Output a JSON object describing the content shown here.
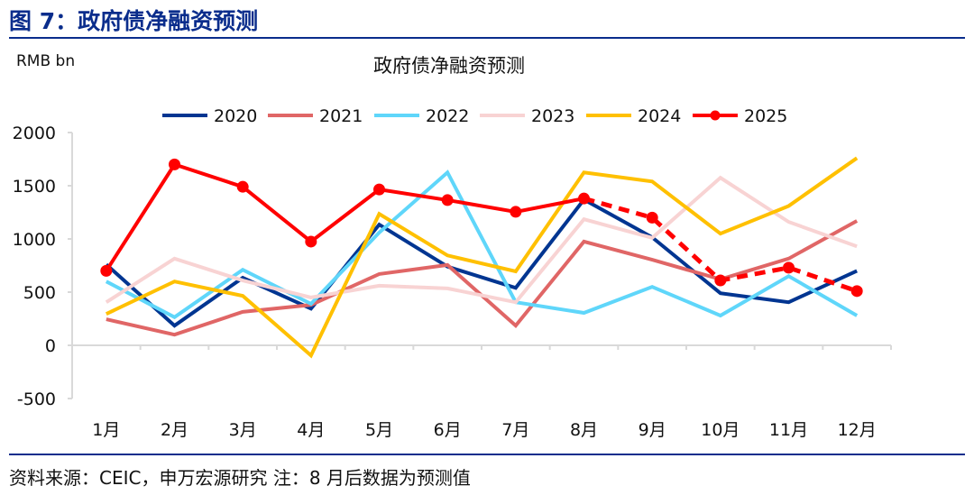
{
  "figure_title": "图 7：政府债净融资预测",
  "unit_label": "RMB bn",
  "source_note": "资料来源：CEIC，申万宏源研究 注：8 月后数据为预测值",
  "chart_data": {
    "type": "line",
    "title": "政府债净融资预测",
    "xlabel": "",
    "ylabel": "RMB bn",
    "categories": [
      "1月",
      "2月",
      "3月",
      "4月",
      "5月",
      "6月",
      "7月",
      "8月",
      "9月",
      "10月",
      "11月",
      "12月"
    ],
    "ylim": [
      -500,
      2000
    ],
    "yticks": [
      -500,
      0,
      500,
      1000,
      1500,
      2000
    ],
    "grid": false,
    "legend": "top",
    "forecast_from": "8月",
    "series": [
      {
        "name": "2020",
        "color": "#003591",
        "values": [
          760,
          185,
          635,
          345,
          1135,
          740,
          540,
          1370,
          1015,
          490,
          405,
          700
        ]
      },
      {
        "name": "2021",
        "color": "#e06666",
        "values": [
          245,
          100,
          315,
          380,
          670,
          755,
          185,
          975,
          805,
          620,
          815,
          1170
        ]
      },
      {
        "name": "2022",
        "color": "#5fd6fa",
        "values": [
          600,
          265,
          710,
          390,
          1060,
          1625,
          405,
          305,
          550,
          280,
          650,
          280
        ]
      },
      {
        "name": "2023",
        "color": "#f8d3d3",
        "values": [
          405,
          815,
          610,
          450,
          560,
          535,
          405,
          1185,
          1010,
          1575,
          1160,
          930
        ]
      },
      {
        "name": "2024",
        "color": "#ffc000",
        "values": [
          295,
          600,
          465,
          -95,
          1235,
          845,
          695,
          1625,
          1540,
          1050,
          1310,
          1760
        ]
      },
      {
        "name": "2025",
        "color": "#ff0000",
        "markers": true,
        "values": [
          700,
          1700,
          1490,
          975,
          1465,
          1365,
          1255,
          1380,
          1200,
          610,
          730,
          510
        ]
      }
    ]
  }
}
